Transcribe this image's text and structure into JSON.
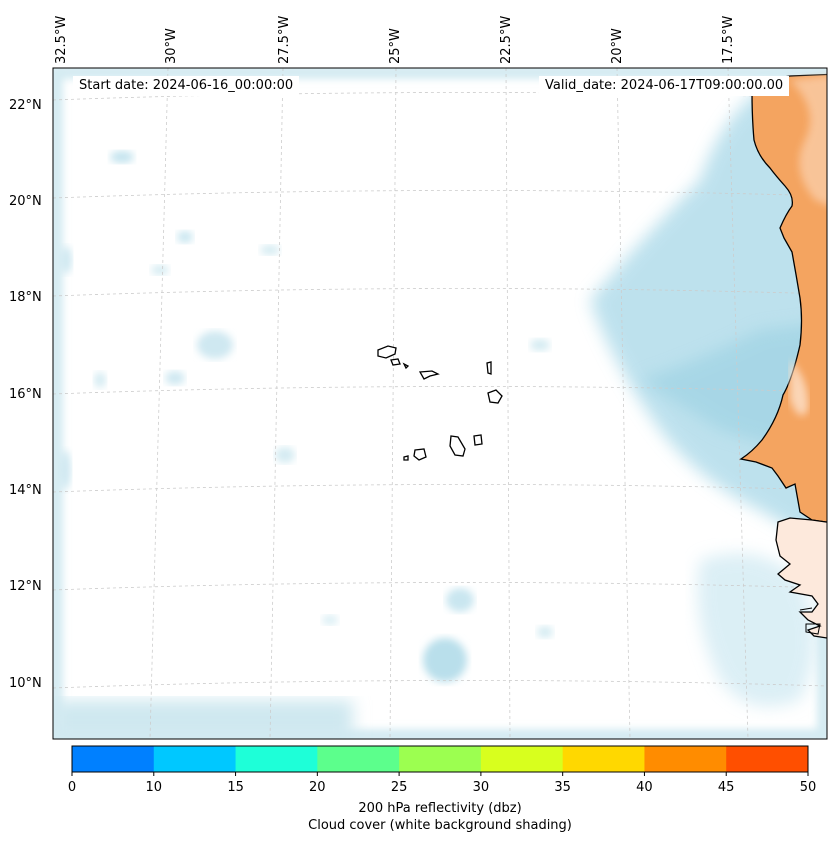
{
  "map": {
    "start_date": "Start date: 2024-06-16_00:00:00",
    "valid_date": "Valid_date: 2024-06-17T09:00:00.00",
    "lat_labels": [
      "22°N",
      "20°N",
      "18°N",
      "16°N",
      "14°N",
      "12°N",
      "10°N"
    ],
    "lon_labels": [
      "32.5°W",
      "30°W",
      "27.5°W",
      "25°W",
      "22.5°W",
      "20°W",
      "17.5°W"
    ],
    "region": "Cabo Verde and the West African coast (Senegal, Mauritania)"
  },
  "colorbar": {
    "ticks": [
      "0",
      "10",
      "15",
      "20",
      "25",
      "30",
      "35",
      "40",
      "45",
      "50"
    ],
    "colors": [
      "#0080ff",
      "#00c8ff",
      "#1effd8",
      "#5cff8c",
      "#9cff50",
      "#d8ff1e",
      "#ffd800",
      "#ff8c00",
      "#ff4f00"
    ],
    "label_line1": "200 hPa reflectivity (dbz)",
    "label_line2": "Cloud cover (white background shading)"
  },
  "palette": {
    "cloud": "#a8d8e8",
    "land": "#f4a460",
    "grid": "#cccccc"
  }
}
